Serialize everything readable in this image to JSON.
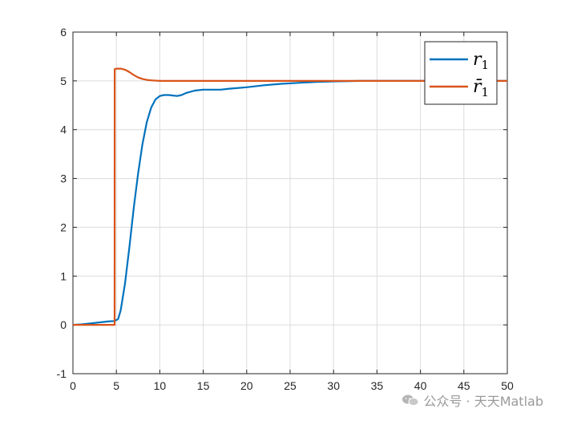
{
  "chart_data": {
    "type": "line",
    "title": "",
    "xlabel": "",
    "ylabel": "",
    "xlim": [
      0,
      50
    ],
    "ylim": [
      -1,
      6
    ],
    "xticks": [
      0,
      5,
      10,
      15,
      20,
      25,
      30,
      35,
      40,
      45,
      50
    ],
    "yticks": [
      -1,
      0,
      1,
      2,
      3,
      4,
      5,
      6
    ],
    "grid": true,
    "legend_position": "top-right",
    "series": [
      {
        "name": "r_1",
        "legend_main": "r",
        "legend_sub": "1",
        "color": "#0072BD",
        "x": [
          0,
          1,
          2,
          3,
          4,
          4.8,
          5.2,
          5.5,
          6,
          6.5,
          7,
          7.5,
          8,
          8.5,
          9,
          9.5,
          10,
          10.5,
          11,
          11.5,
          12,
          12.5,
          13,
          14,
          15,
          16,
          17,
          18,
          20,
          22,
          24,
          26,
          28,
          30,
          33,
          36,
          40,
          45,
          50
        ],
        "y": [
          0.0,
          0.01,
          0.03,
          0.05,
          0.07,
          0.08,
          0.12,
          0.3,
          0.85,
          1.6,
          2.4,
          3.1,
          3.7,
          4.15,
          4.45,
          4.62,
          4.69,
          4.71,
          4.71,
          4.7,
          4.69,
          4.71,
          4.75,
          4.8,
          4.82,
          4.82,
          4.82,
          4.84,
          4.87,
          4.91,
          4.94,
          4.96,
          4.98,
          4.99,
          5.0,
          5.0,
          5.0,
          5.0,
          5.0
        ]
      },
      {
        "name": "r̄_1",
        "legend_main": "r̄",
        "legend_sub": "1",
        "color": "#D95319",
        "x": [
          0,
          1,
          2,
          3,
          4,
          4.8,
          4.81,
          5.0,
          5.5,
          6,
          6.5,
          7,
          7.5,
          8,
          8.5,
          9,
          10,
          11,
          12,
          15,
          20,
          25,
          30,
          35,
          40,
          45,
          50
        ],
        "y": [
          0.0,
          0.0,
          0.0,
          0.0,
          0.0,
          0.0,
          5.24,
          5.25,
          5.25,
          5.23,
          5.18,
          5.12,
          5.07,
          5.04,
          5.02,
          5.01,
          5.0,
          5.0,
          5.0,
          5.0,
          5.0,
          5.0,
          5.0,
          5.0,
          5.0,
          5.0,
          5.0
        ]
      }
    ]
  },
  "watermark": {
    "icon": "wechat-icon",
    "text": "公众号 · 天天Matlab"
  }
}
